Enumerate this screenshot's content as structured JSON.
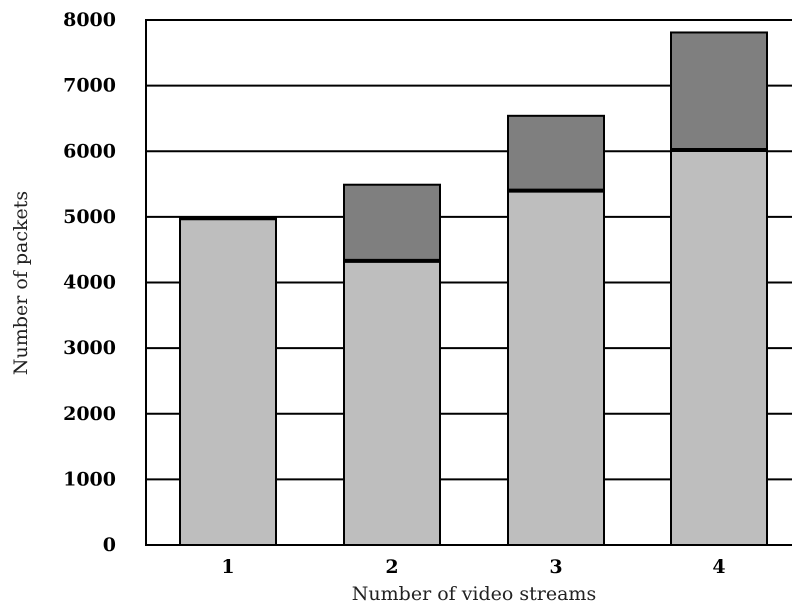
{
  "chart_data": {
    "type": "bar",
    "stacked": true,
    "title": "",
    "xlabel": "Number of video streams",
    "ylabel": "Number of packets",
    "categories": [
      "1",
      "2",
      "3",
      "4"
    ],
    "ylim": [
      0,
      8000
    ],
    "yticks": [
      0,
      1000,
      2000,
      3000,
      4000,
      5000,
      6000,
      7000,
      8000
    ],
    "ytick_labels": [
      "0",
      "1000",
      "2000",
      "3000",
      "4000",
      "5000",
      "6000",
      "7000",
      "8000"
    ],
    "grid": "horizontal",
    "legend": "none",
    "series": [
      {
        "values": [
          4980,
          4330,
          5400,
          6020
        ],
        "color": "#bebebe"
      },
      {
        "values": [
          0,
          1160,
          1140,
          1790
        ],
        "color": "#7f7f7f"
      }
    ]
  }
}
